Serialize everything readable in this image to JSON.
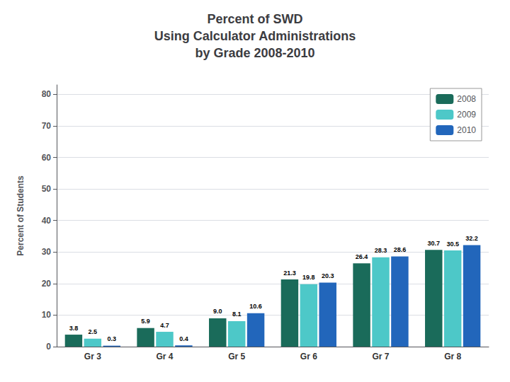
{
  "chart_data": {
    "type": "bar",
    "title": "Percent of SWD\nUsing Calculator Administrations\nby Grade 2008-2010",
    "categories": [
      "Gr 3",
      "Gr 4",
      "Gr 5",
      "Gr 6",
      "Gr 7",
      "Gr 8"
    ],
    "series": [
      {
        "name": "2008",
        "color": "#1a6b5a",
        "values": [
          3.8,
          5.9,
          9.0,
          21.3,
          26.4,
          30.7
        ],
        "value_labels": [
          "3.8",
          "5.9",
          "9.0",
          "21.3",
          "26.4",
          "30.7"
        ]
      },
      {
        "name": "2009",
        "color": "#4dc8c8",
        "values": [
          2.5,
          4.7,
          8.1,
          19.8,
          28.3,
          30.5
        ],
        "value_labels": [
          "2.5",
          "4.7",
          "8.1",
          "19.8",
          "28.3",
          "30.5"
        ]
      },
      {
        "name": "2010",
        "color": "#2266bb",
        "values": [
          0.3,
          0.4,
          10.6,
          20.3,
          28.6,
          32.2
        ],
        "value_labels": [
          "0.3",
          "0.4",
          "10.6",
          "20.3",
          "28.6",
          "32.2"
        ]
      }
    ],
    "ylabel": "Percent of Students",
    "ylim": [
      0,
      83
    ],
    "yticks": [
      0,
      10,
      20,
      30,
      40,
      50,
      60,
      70,
      80
    ],
    "grid": true,
    "legend": "upper right",
    "data_labels": true
  }
}
